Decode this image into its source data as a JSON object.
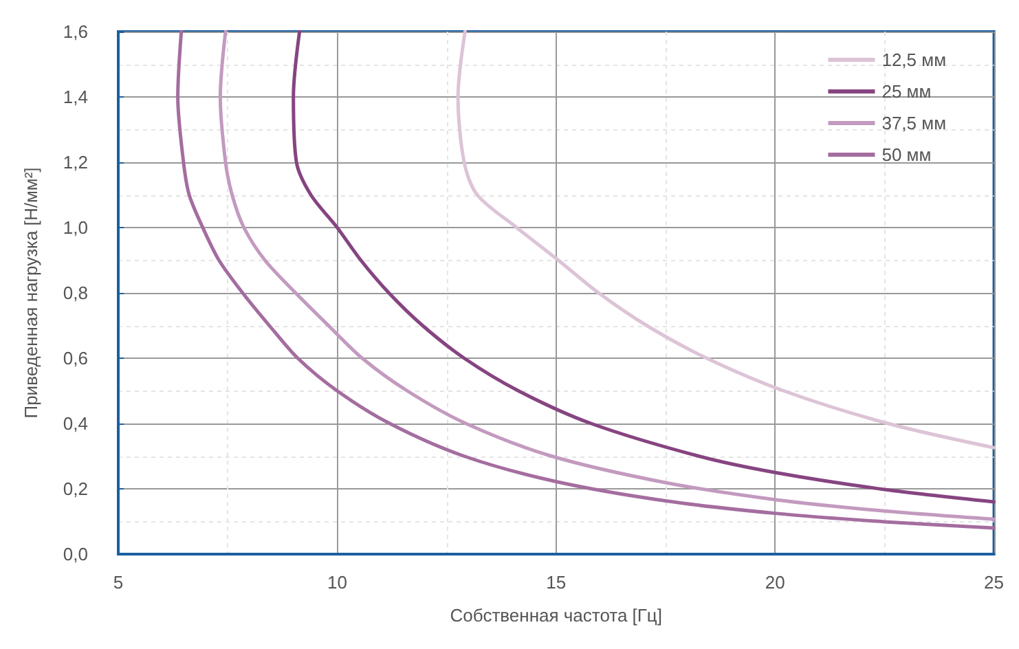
{
  "chart_data": {
    "type": "line",
    "xlabel": "Собственная частота [Гц]",
    "ylabel": "Приведенная нагрузка [Н/мм²]",
    "xlim": [
      5,
      25
    ],
    "xticks": [
      5,
      10,
      15,
      20,
      25
    ],
    "ylim": [
      0,
      1.6
    ],
    "yticks": [
      {
        "value": 0,
        "label": "0,0"
      },
      {
        "value": 0.2,
        "label": "0,2"
      },
      {
        "value": 0.4,
        "label": "0,4"
      },
      {
        "value": 0.6,
        "label": "0,6"
      },
      {
        "value": 0.8,
        "label": "0,8"
      },
      {
        "value": 1.0,
        "label": "1,0"
      },
      {
        "value": 1.2,
        "label": "1,2"
      },
      {
        "value": 1.4,
        "label": "1,4"
      },
      {
        "value": 1.6,
        "label": "1,6"
      }
    ],
    "grid": true,
    "legend": "top right",
    "marker": "none",
    "line_style": "solid",
    "series": [
      {
        "name": "12,5 мм",
        "color": "#dcc4d6",
        "x": [
          12.92,
          12.76,
          12.9,
          13.2,
          14.1,
          15.05,
          15.97,
          17.07,
          18.44,
          20.2,
          22.58,
          25
        ],
        "values": [
          1.6,
          1.4,
          1.2,
          1.1,
          1.0,
          0.9,
          0.8,
          0.7,
          0.6,
          0.5,
          0.4,
          0.326
        ]
      },
      {
        "name": "25 мм",
        "color": "#864481",
        "x": [
          9.14,
          9.0,
          9.07,
          9.4,
          10.0,
          10.54,
          11.18,
          11.95,
          12.9,
          14.14,
          15.8,
          18.26,
          20,
          22.5,
          25
        ],
        "values": [
          1.6,
          1.4,
          1.2,
          1.1,
          1.0,
          0.9,
          0.8,
          0.7,
          0.6,
          0.5,
          0.4,
          0.3,
          0.25,
          0.198,
          0.16
        ]
      },
      {
        "name": "37,5 мм",
        "color": "#c39abf",
        "x": [
          7.45,
          7.33,
          7.45,
          7.6,
          7.87,
          8.35,
          9.05,
          9.8,
          10.57,
          11.6,
          12.94,
          14.9,
          17.5,
          20,
          22.5,
          25
        ],
        "values": [
          1.6,
          1.4,
          1.2,
          1.1,
          1.0,
          0.9,
          0.8,
          0.7,
          0.6,
          0.5,
          0.4,
          0.3,
          0.219,
          0.167,
          0.132,
          0.107
        ]
      },
      {
        "name": "50 мм",
        "color": "#a46d9f",
        "x": [
          6.44,
          6.36,
          6.49,
          6.62,
          6.93,
          7.3,
          7.84,
          8.45,
          9.1,
          10,
          11.2,
          12.9,
          15,
          17.5,
          20,
          22.5,
          25
        ],
        "values": [
          1.6,
          1.4,
          1.2,
          1.1,
          1.0,
          0.9,
          0.8,
          0.7,
          0.6,
          0.5,
          0.4,
          0.3,
          0.222,
          0.163,
          0.125,
          0.099,
          0.08
        ]
      }
    ]
  }
}
